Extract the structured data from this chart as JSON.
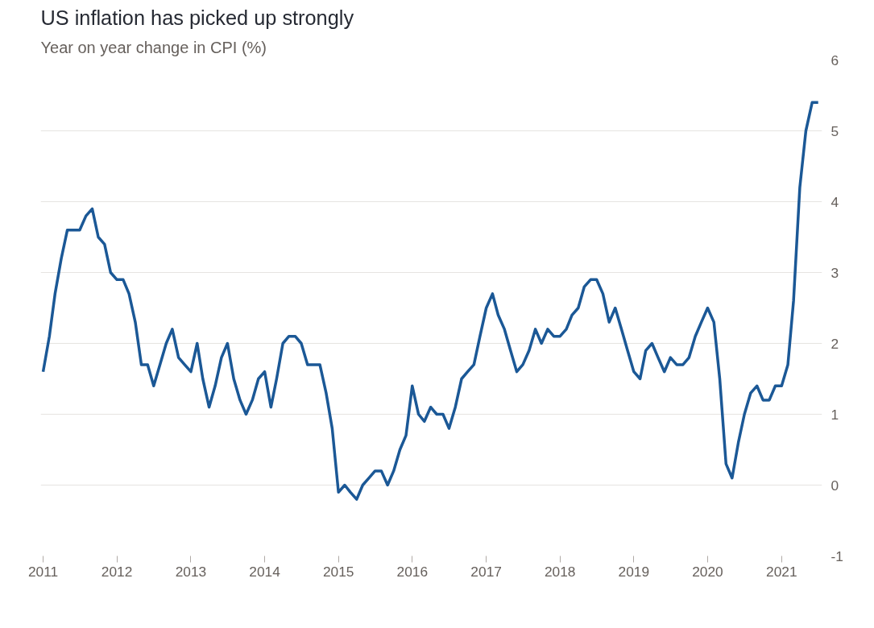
{
  "chart_data": {
    "type": "line",
    "title": "US inflation has picked up strongly",
    "subtitle": "Year on year change in CPI (%)",
    "x": [
      "2011-01",
      "2011-02",
      "2011-03",
      "2011-04",
      "2011-05",
      "2011-06",
      "2011-07",
      "2011-08",
      "2011-09",
      "2011-10",
      "2011-11",
      "2011-12",
      "2012-01",
      "2012-02",
      "2012-03",
      "2012-04",
      "2012-05",
      "2012-06",
      "2012-07",
      "2012-08",
      "2012-09",
      "2012-10",
      "2012-11",
      "2012-12",
      "2013-01",
      "2013-02",
      "2013-03",
      "2013-04",
      "2013-05",
      "2013-06",
      "2013-07",
      "2013-08",
      "2013-09",
      "2013-10",
      "2013-11",
      "2013-12",
      "2014-01",
      "2014-02",
      "2014-03",
      "2014-04",
      "2014-05",
      "2014-06",
      "2014-07",
      "2014-08",
      "2014-09",
      "2014-10",
      "2014-11",
      "2014-12",
      "2015-01",
      "2015-02",
      "2015-03",
      "2015-04",
      "2015-05",
      "2015-06",
      "2015-07",
      "2015-08",
      "2015-09",
      "2015-10",
      "2015-11",
      "2015-12",
      "2016-01",
      "2016-02",
      "2016-03",
      "2016-04",
      "2016-05",
      "2016-06",
      "2016-07",
      "2016-08",
      "2016-09",
      "2016-10",
      "2016-11",
      "2016-12",
      "2017-01",
      "2017-02",
      "2017-03",
      "2017-04",
      "2017-05",
      "2017-06",
      "2017-07",
      "2017-08",
      "2017-09",
      "2017-10",
      "2017-11",
      "2017-12",
      "2018-01",
      "2018-02",
      "2018-03",
      "2018-04",
      "2018-05",
      "2018-06",
      "2018-07",
      "2018-08",
      "2018-09",
      "2018-10",
      "2018-11",
      "2018-12",
      "2019-01",
      "2019-02",
      "2019-03",
      "2019-04",
      "2019-05",
      "2019-06",
      "2019-07",
      "2019-08",
      "2019-09",
      "2019-10",
      "2019-11",
      "2019-12",
      "2020-01",
      "2020-02",
      "2020-03",
      "2020-04",
      "2020-05",
      "2020-06",
      "2020-07",
      "2020-08",
      "2020-09",
      "2020-10",
      "2020-11",
      "2020-12",
      "2021-01",
      "2021-02",
      "2021-03",
      "2021-04",
      "2021-05",
      "2021-06",
      "2021-07"
    ],
    "series": [
      {
        "color": "#1b5896",
        "values": [
          1.6,
          2.1,
          2.7,
          3.2,
          3.6,
          3.6,
          3.6,
          3.8,
          3.9,
          3.5,
          3.4,
          3.0,
          2.9,
          2.9,
          2.7,
          2.3,
          1.7,
          1.7,
          1.4,
          1.7,
          2.0,
          2.2,
          1.8,
          1.7,
          1.6,
          2.0,
          1.5,
          1.1,
          1.4,
          1.8,
          2.0,
          1.5,
          1.2,
          1.0,
          1.2,
          1.5,
          1.6,
          1.1,
          1.5,
          2.0,
          2.1,
          2.1,
          2.0,
          1.7,
          1.7,
          1.7,
          1.3,
          0.8,
          -0.1,
          0.0,
          -0.1,
          -0.2,
          0.0,
          0.1,
          0.2,
          0.2,
          0.0,
          0.2,
          0.5,
          0.7,
          1.4,
          1.0,
          0.9,
          1.1,
          1.0,
          1.0,
          0.8,
          1.1,
          1.5,
          1.6,
          1.7,
          2.1,
          2.5,
          2.7,
          2.4,
          2.2,
          1.9,
          1.6,
          1.7,
          1.9,
          2.2,
          2.0,
          2.2,
          2.1,
          2.1,
          2.2,
          2.4,
          2.5,
          2.8,
          2.9,
          2.9,
          2.7,
          2.3,
          2.5,
          2.2,
          1.9,
          1.6,
          1.5,
          1.9,
          2.0,
          1.8,
          1.6,
          1.8,
          1.7,
          1.7,
          1.8,
          2.1,
          2.3,
          2.5,
          2.3,
          1.5,
          0.3,
          0.1,
          0.6,
          1.0,
          1.3,
          1.4,
          1.2,
          1.2,
          1.4,
          1.4,
          1.7,
          2.6,
          4.2,
          5.0,
          5.4,
          5.4
        ]
      }
    ],
    "xlim": [
      "2010-12-20",
      "2021-07-20"
    ],
    "xticks": [
      {
        "value": "2011-01",
        "label": "2011"
      },
      {
        "value": "2012-01",
        "label": "2012"
      },
      {
        "value": "2013-01",
        "label": "2013"
      },
      {
        "value": "2014-01",
        "label": "2014"
      },
      {
        "value": "2015-01",
        "label": "2015"
      },
      {
        "value": "2016-01",
        "label": "2016"
      },
      {
        "value": "2017-01",
        "label": "2017"
      },
      {
        "value": "2018-01",
        "label": "2018"
      },
      {
        "value": "2019-01",
        "label": "2019"
      },
      {
        "value": "2020-01",
        "label": "2020"
      },
      {
        "value": "2021-01",
        "label": "2021"
      }
    ],
    "ylim": [
      -1,
      6
    ],
    "yticks": [
      -1,
      0,
      1,
      2,
      3,
      4,
      5,
      6
    ],
    "grid": "y",
    "line_style": "solid",
    "marker": "none"
  }
}
